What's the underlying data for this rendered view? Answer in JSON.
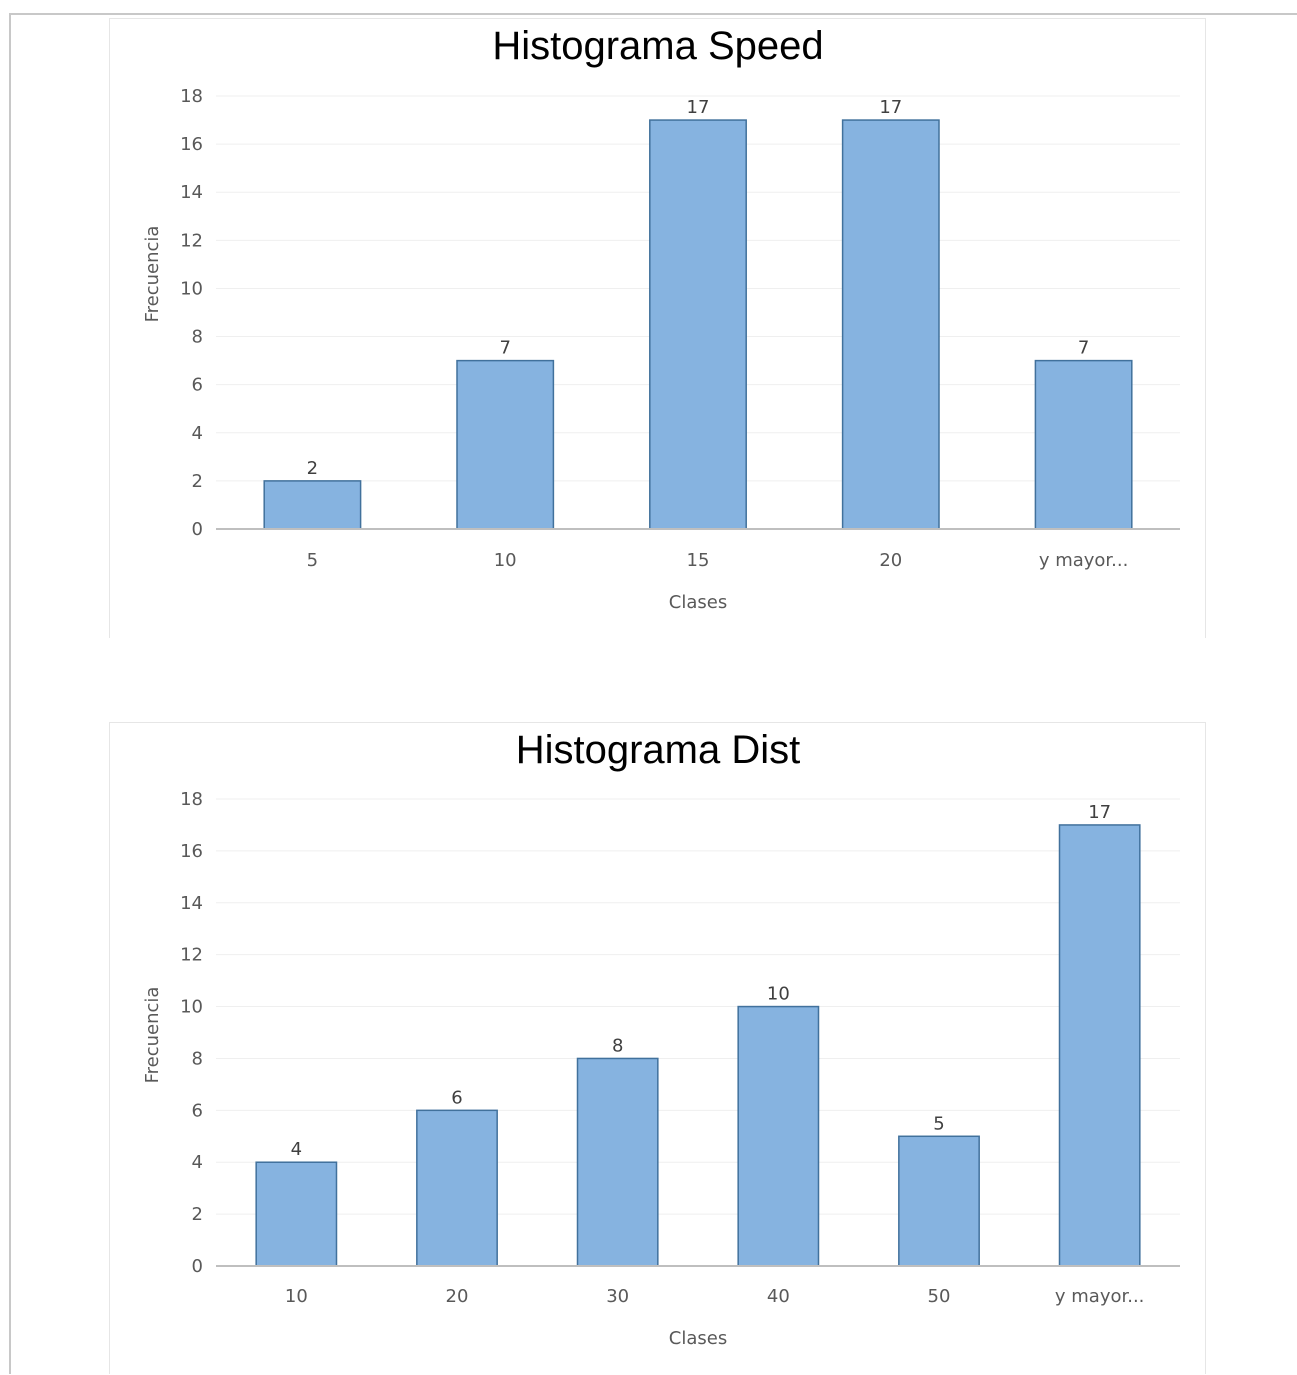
{
  "chart_data": [
    {
      "type": "bar",
      "title": "Histograma Speed",
      "xlabel": "Clases",
      "ylabel": "Frecuencia",
      "categories": [
        "5",
        "10",
        "15",
        "20",
        "y mayor..."
      ],
      "values": [
        2,
        7,
        17,
        17,
        7
      ],
      "ylim": [
        0,
        18
      ],
      "yticks": [
        0,
        2,
        4,
        6,
        8,
        10,
        12,
        14,
        16,
        18
      ],
      "grid": true,
      "legend": "none",
      "bar_color": "#86b3e0",
      "bar_border_color": "#41719c"
    },
    {
      "type": "bar",
      "title": "Histograma Dist",
      "xlabel": "Clases",
      "ylabel": "Frecuencia",
      "categories": [
        "10",
        "20",
        "30",
        "40",
        "50",
        "y mayor..."
      ],
      "values": [
        4,
        6,
        8,
        10,
        5,
        17
      ],
      "ylim": [
        0,
        18
      ],
      "yticks": [
        0,
        2,
        4,
        6,
        8,
        10,
        12,
        14,
        16,
        18
      ],
      "grid": true,
      "legend": "none",
      "bar_color": "#86b3e0",
      "bar_border_color": "#41719c"
    }
  ]
}
